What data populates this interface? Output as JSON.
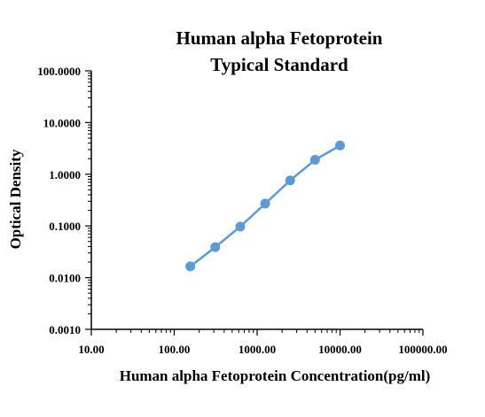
{
  "chart_data": {
    "type": "line",
    "title": [
      "Human alpha Fetoprotein",
      "Typical Standard"
    ],
    "xlabel": "Human alpha Fetoprotein Concentration(pg/ml)",
    "ylabel": "Optical Density",
    "xscale": "log",
    "yscale": "log",
    "xlim": [
      10,
      100000
    ],
    "ylim": [
      0.001,
      100
    ],
    "x_tick_labels": [
      "10.00",
      "100.00",
      "1000.00",
      "10000.00",
      "100000.00"
    ],
    "y_tick_labels": [
      "0.0010",
      "0.0100",
      "0.1000",
      "1.0000",
      "10.0000",
      "100.0000"
    ],
    "grid": false,
    "legend": "none",
    "series": [
      {
        "color": "#5b9bd5",
        "x": [
          156.25,
          312.5,
          625,
          1250,
          2500,
          5000,
          10000
        ],
        "y": [
          0.0165,
          0.039,
          0.097,
          0.27,
          0.76,
          1.9,
          3.6
        ]
      }
    ]
  }
}
